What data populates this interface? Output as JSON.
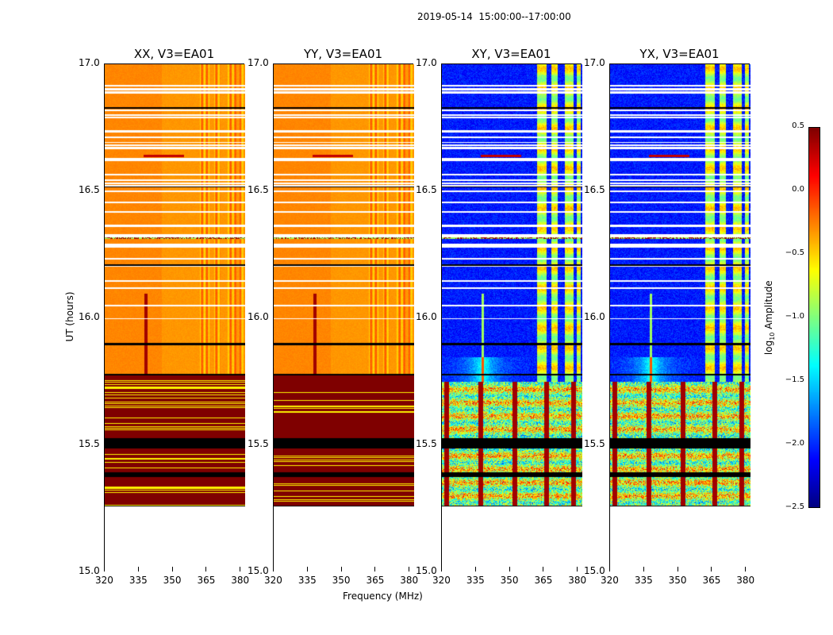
{
  "suptitle": "2019-05-14  15:00:00--17:00:00",
  "chart_data": {
    "type": "heatmap",
    "xlabel": "Frequency (MHz)",
    "ylabel": "UT (hours)",
    "xlim": [
      320,
      382
    ],
    "ylim": [
      15.0,
      17.0
    ],
    "xticks": [
      "320",
      "335",
      "350",
      "365",
      "380"
    ],
    "yticks": [
      "15.0",
      "15.5",
      "16.0",
      "16.5",
      "17.0"
    ],
    "colorbar": {
      "label_main": "log",
      "label_sub": "10",
      "label_tail": " Amplitude",
      "vmin": -2.5,
      "vmax": 0.5,
      "ticks": [
        "0.5",
        "0.0",
        "−0.5",
        "−1.0",
        "−1.5",
        "−2.0",
        "−2.5"
      ],
      "colormap": "jet"
    },
    "data_start_hours": 15.26,
    "flagged_rows_hours": [
      16.83,
      16.52,
      16.21,
      15.9,
      15.78,
      15.5,
      15.39
    ],
    "panels": [
      {
        "title": "XX, V3=EA01",
        "kind": "parallel"
      },
      {
        "title": "YY, V3=EA01",
        "kind": "parallel"
      },
      {
        "title": "XY, V3=EA01",
        "kind": "cross"
      },
      {
        "title": "YX, V3=EA01",
        "kind": "cross"
      }
    ]
  }
}
